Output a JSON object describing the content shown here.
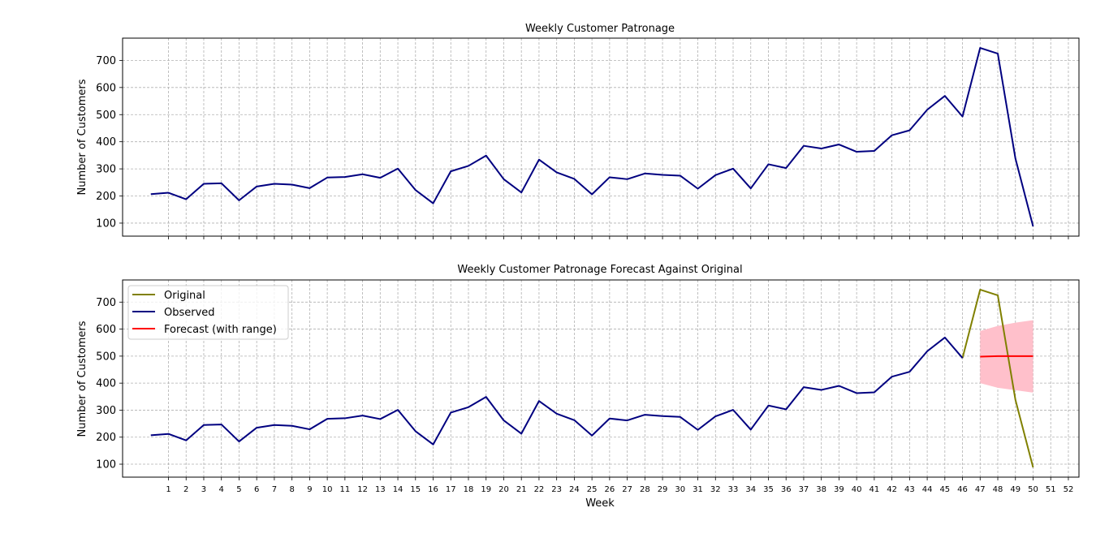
{
  "chart_data": [
    {
      "type": "line",
      "title": "Weekly Customer Patronage",
      "xlabel": "",
      "ylabel": "Number of Customers",
      "xlim": [
        -1.6,
        52.6
      ],
      "ylim": [
        52,
        782
      ],
      "yticks": [
        100,
        200,
        300,
        400,
        500,
        600,
        700
      ],
      "grid": true,
      "series": [
        {
          "color": "#000080",
          "x": [
            0,
            1,
            2,
            3,
            4,
            5,
            6,
            7,
            8,
            9,
            10,
            11,
            12,
            13,
            14,
            15,
            16,
            17,
            18,
            19,
            20,
            21,
            22,
            23,
            24,
            25,
            26,
            27,
            28,
            29,
            30,
            31,
            32,
            33,
            34,
            35,
            36,
            37,
            38,
            39,
            40,
            41,
            42,
            43,
            44,
            45,
            46,
            47,
            48,
            49,
            50
          ],
          "values": [
            207,
            212,
            188,
            245,
            247,
            184,
            235,
            245,
            242,
            229,
            268,
            270,
            280,
            267,
            301,
            222,
            173,
            291,
            311,
            349,
            262,
            213,
            334,
            287,
            263,
            206,
            269,
            262,
            283,
            278,
            275,
            227,
            277,
            301,
            228,
            317,
            303,
            385,
            375,
            390,
            363,
            366,
            424,
            442,
            518,
            569,
            493,
            746,
            725,
            338,
            88
          ]
        }
      ]
    },
    {
      "type": "line",
      "title": "Weekly Customer Patronage Forecast Against Original",
      "xlabel": "Week",
      "ylabel": "Number of Customers",
      "xlim": [
        -1.6,
        52.6
      ],
      "ylim": [
        52,
        782
      ],
      "xticks": [
        "1",
        "2",
        "3",
        "4",
        "5",
        "6",
        "7",
        "8",
        "9",
        "10",
        "11",
        "12",
        "13",
        "14",
        "15",
        "16",
        "17",
        "18",
        "19",
        "20",
        "21",
        "22",
        "23",
        "24",
        "25",
        "26",
        "27",
        "28",
        "29",
        "30",
        "31",
        "32",
        "33",
        "34",
        "35",
        "36",
        "37",
        "38",
        "39",
        "40",
        "41",
        "42",
        "43",
        "44",
        "45",
        "46",
        "47",
        "48",
        "49",
        "50",
        "51",
        "52"
      ],
      "yticks": [
        100,
        200,
        300,
        400,
        500,
        600,
        700
      ],
      "grid": true,
      "legend_position": "top-left",
      "series": [
        {
          "name": "Original",
          "color": "#808000",
          "x": [
            46,
            47,
            48,
            49,
            50
          ],
          "values": [
            493,
            746,
            725,
            338,
            88
          ]
        },
        {
          "name": "Observed",
          "color": "#000080",
          "x": [
            0,
            1,
            2,
            3,
            4,
            5,
            6,
            7,
            8,
            9,
            10,
            11,
            12,
            13,
            14,
            15,
            16,
            17,
            18,
            19,
            20,
            21,
            22,
            23,
            24,
            25,
            26,
            27,
            28,
            29,
            30,
            31,
            32,
            33,
            34,
            35,
            36,
            37,
            38,
            39,
            40,
            41,
            42,
            43,
            44,
            45,
            46
          ],
          "values": [
            207,
            212,
            188,
            245,
            247,
            184,
            235,
            245,
            242,
            229,
            268,
            270,
            280,
            267,
            301,
            222,
            173,
            291,
            311,
            349,
            262,
            213,
            334,
            287,
            263,
            206,
            269,
            262,
            283,
            278,
            275,
            227,
            277,
            301,
            228,
            317,
            303,
            385,
            375,
            390,
            363,
            366,
            424,
            442,
            518,
            569,
            493
          ]
        },
        {
          "name": "Forecast (with range)",
          "color": "#ff0000",
          "x": [
            47,
            48,
            49,
            50
          ],
          "values": [
            498,
            500,
            500,
            500
          ],
          "upper": [
            593,
            612,
            624,
            633
          ],
          "lower": [
            400,
            383,
            374,
            365
          ],
          "band_color": "#ffc0cb"
        }
      ]
    }
  ]
}
